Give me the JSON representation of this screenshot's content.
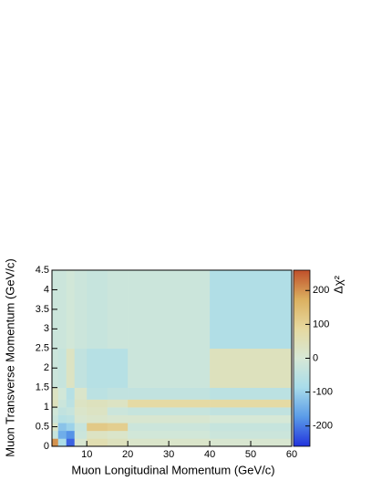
{
  "chart_data": {
    "type": "heatmap",
    "x_label": "Muon Longitudinal Momentum (GeV/c)",
    "y_label": "Muon Transverse Momentum (GeV/c)",
    "z_label": "Δχ²",
    "xbins": [
      1.5,
      3,
      5,
      7,
      10,
      15,
      20,
      40,
      60
    ],
    "ybins": [
      0,
      0.2,
      0.4,
      0.6,
      0.8,
      1,
      1.2,
      1.5,
      2.5,
      4.5
    ],
    "values": [
      [
        200,
        -80,
        -220,
        10,
        60,
        40,
        20,
        10
      ],
      [
        -30,
        -150,
        -180,
        -20,
        30,
        20,
        -10,
        -20
      ],
      [
        20,
        -120,
        -100,
        -30,
        120,
        110,
        -20,
        -30
      ],
      [
        -20,
        -60,
        -50,
        10,
        20,
        10,
        10,
        0
      ],
      [
        -10,
        -40,
        -30,
        20,
        30,
        -20,
        -30,
        -40
      ],
      [
        40,
        -20,
        -50,
        30,
        40,
        30,
        80,
        80
      ],
      [
        30,
        -10,
        -60,
        20,
        -50,
        -40,
        -40,
        -50
      ],
      [
        -20,
        -30,
        30,
        -40,
        -60,
        -60,
        -20,
        40
      ],
      [
        -20,
        -20,
        -10,
        -20,
        -30,
        -20,
        -20,
        -70
      ]
    ],
    "xlim": [
      1.5,
      60
    ],
    "ylim": [
      0,
      4.5
    ],
    "zlim": [
      -260,
      260
    ],
    "xticks": [
      10,
      20,
      30,
      40,
      50,
      60
    ],
    "yticks": [
      0,
      0.5,
      1,
      1.5,
      2,
      2.5,
      3,
      3.5,
      4,
      4.5
    ],
    "zticks": [
      -200,
      -100,
      0,
      100,
      200
    ],
    "colorscale": [
      "#2233dd",
      "#5a9be8",
      "#a8dcea",
      "#d6e8d6",
      "#e6d9a0",
      "#dcb060",
      "#c0502a"
    ]
  }
}
